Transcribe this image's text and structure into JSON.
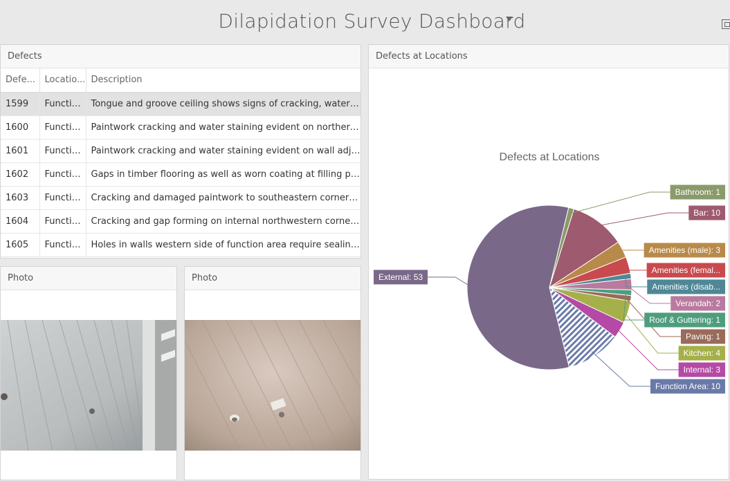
{
  "dashboard": {
    "title": "Dilapidation Survey Dashboard"
  },
  "defects_panel": {
    "title": "Defects",
    "columns": [
      "Defe...",
      "Locatio...",
      "Description"
    ],
    "rows": [
      {
        "id": "1599",
        "location": "Functio...",
        "description": "Tongue and groove ceiling shows signs of cracking, water staining"
      },
      {
        "id": "1600",
        "location": "Functio...",
        "description": "Paintwork cracking and water staining evident on northern wall"
      },
      {
        "id": "1601",
        "location": "Functio...",
        "description": "Paintwork cracking and water staining evident on wall adjacent"
      },
      {
        "id": "1602",
        "location": "Functio...",
        "description": "Gaps in timber flooring as well as worn coating at filling points"
      },
      {
        "id": "1603",
        "location": "Functio...",
        "description": "Cracking and damaged paintwork to southeastern corner of room"
      },
      {
        "id": "1604",
        "location": "Functio...",
        "description": "Cracking and gap forming on internal northwestern corner of wall"
      },
      {
        "id": "1605",
        "location": "Functio...",
        "description": "Holes in walls western side of function area require sealing and"
      }
    ]
  },
  "photo_panels": [
    {
      "title": "Photo"
    },
    {
      "title": "Photo"
    }
  ],
  "chart_panel": {
    "title": "Defects at Locations"
  },
  "chart_data": {
    "type": "pie",
    "title": "Defects at Locations",
    "slices": [
      {
        "label": "Bathroom: 1",
        "value": 1,
        "color": "#8a9a6a"
      },
      {
        "label": "Bar: 10",
        "value": 10,
        "color": "#9e5a6e"
      },
      {
        "label": "Amenities (male): 3",
        "value": 3,
        "color": "#b88a4a"
      },
      {
        "label": "Amenities (femal...",
        "value": 3,
        "color": "#c84a4e"
      },
      {
        "label": "Amenities (disab...",
        "value": 1,
        "color": "#4f8796"
      },
      {
        "label": "Verandah: 2",
        "value": 2,
        "color": "#b87a9e"
      },
      {
        "label": "Roof & Guttering: 1",
        "value": 1,
        "color": "#4e9e7e"
      },
      {
        "label": "Paving: 1",
        "value": 1,
        "color": "#9a6a5a"
      },
      {
        "label": "Kitchen: 4",
        "value": 4,
        "color": "#a6b04a"
      },
      {
        "label": "Internal: 3",
        "value": 3,
        "color": "#b44aa6"
      },
      {
        "label": "Function Area: 10",
        "value": 10,
        "color": "#6a7aa8"
      },
      {
        "label": "External: 53",
        "value": 53,
        "color": "#7a6889"
      }
    ]
  }
}
